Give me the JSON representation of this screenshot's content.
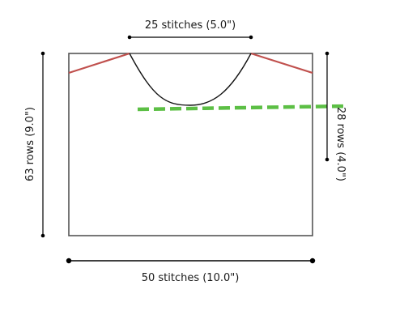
{
  "labels": {
    "neck_width": "25 stitches (5.0\")",
    "body_width": "50 stitches (10.0\")",
    "body_length": "63 rows (9.0\")",
    "yoke_depth": "28 rows (4.0\")"
  },
  "colors": {
    "outline": "#555555",
    "shoulder": "#c0504d",
    "marker": "#5cbf45",
    "dimension": "#000000",
    "neckline": "#111111"
  }
}
